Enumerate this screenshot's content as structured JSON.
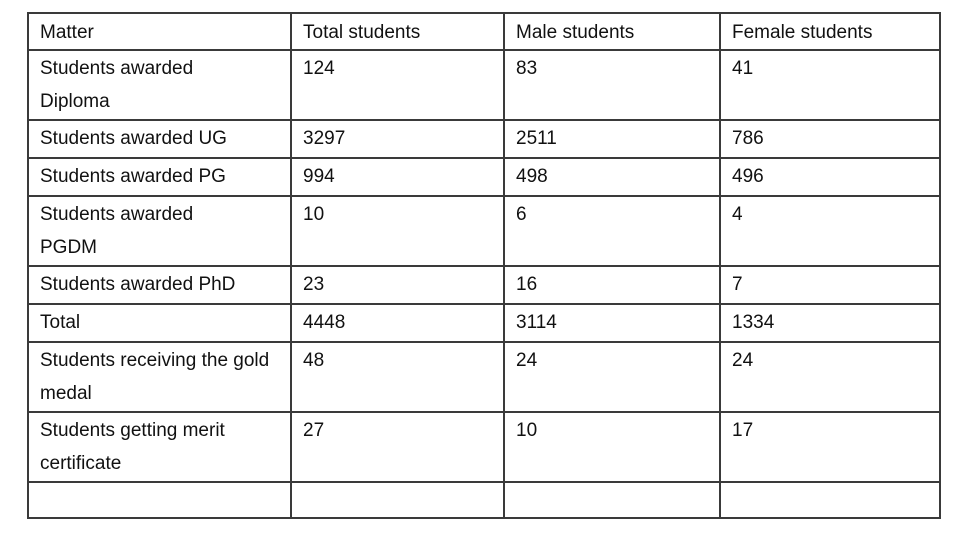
{
  "table": {
    "headers": [
      "Matter",
      "Total students",
      "Male students",
      "Female students"
    ],
    "rows": [
      {
        "matter": "Students awarded Diploma",
        "total": "124",
        "male": "83",
        "female": "41"
      },
      {
        "matter": "Students awarded UG",
        "total": "3297",
        "male": "2511",
        "female": "786"
      },
      {
        "matter": "Students awarded PG",
        "total": "994",
        "male": "498",
        "female": "496"
      },
      {
        "matter": "Students awarded PGDM",
        "total": "10",
        "male": "6",
        "female": "4"
      },
      {
        "matter": "Students awarded PhD",
        "total": "23",
        "male": "16",
        "female": "7"
      },
      {
        "matter": "Total",
        "total": "4448",
        "male": "3114",
        "female": "1334"
      },
      {
        "matter": "Students receiving the gold medal",
        "total": "48",
        "male": "24",
        "female": "24"
      },
      {
        "matter": "Students getting merit certificate",
        "total": "27",
        "male": "10",
        "female": "17"
      },
      {
        "matter": "",
        "total": "",
        "male": "",
        "female": ""
      }
    ]
  }
}
